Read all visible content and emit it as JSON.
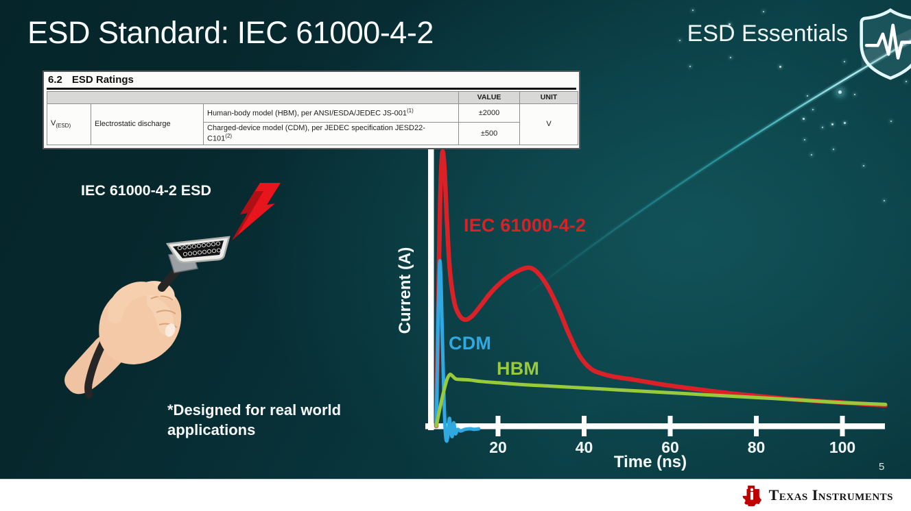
{
  "slide": {
    "title": "ESD Standard: IEC 61000-4-2",
    "brand": "ESD Essentials",
    "page_number": "5"
  },
  "ratings_table": {
    "section_number": "6.2",
    "section_title": "ESD Ratings",
    "value_header": "VALUE",
    "unit_header": "UNIT",
    "param_symbol": "V",
    "param_subscript": "(ESD)",
    "param_name": "Electrostatic discharge",
    "row1": {
      "desc": "Human-body model (HBM), per ANSI/ESDA/JEDEC JS-001",
      "sup": "(1)",
      "value": "±2000"
    },
    "row2": {
      "desc_line1": "Charged-device model (CDM), per JEDEC specification JESD22-",
      "desc_line2": "C101",
      "sup": "(2)",
      "value": "±500"
    },
    "unit": "V"
  },
  "illustration": {
    "label": "IEC 61000-4-2 ESD",
    "note": "*Designed for real world\napplications"
  },
  "footer": {
    "logo_text": "Texas Instruments"
  },
  "chart_data": {
    "type": "line",
    "title": "",
    "xlabel": "Time (ns)",
    "ylabel": "Current (A)",
    "x_ticks": [
      20,
      40,
      60,
      80,
      100
    ],
    "xlim": [
      0,
      110
    ],
    "ylim": [
      0,
      1
    ],
    "grid": false,
    "legend": "inline-labels",
    "axis_color": "#ffffff",
    "series": [
      {
        "name": "IEC 61000-4-2",
        "color": "#da2128",
        "points": [
          [
            5.65,
            0
          ],
          [
            5.9,
            0.22
          ],
          [
            6.2,
            0.52
          ],
          [
            6.55,
            0.82
          ],
          [
            6.9,
            0.97
          ],
          [
            7.2,
            1.0
          ],
          [
            7.6,
            0.93
          ],
          [
            8.1,
            0.76
          ],
          [
            8.8,
            0.57
          ],
          [
            9.8,
            0.455
          ],
          [
            11,
            0.405
          ],
          [
            12.4,
            0.388
          ],
          [
            14,
            0.402
          ],
          [
            16,
            0.44
          ],
          [
            18.5,
            0.49
          ],
          [
            21.5,
            0.535
          ],
          [
            24.5,
            0.565
          ],
          [
            27,
            0.578
          ],
          [
            29,
            0.563
          ],
          [
            31.5,
            0.51
          ],
          [
            34,
            0.43
          ],
          [
            36.5,
            0.335
          ],
          [
            39,
            0.255
          ],
          [
            41.5,
            0.21
          ],
          [
            44,
            0.192
          ],
          [
            47,
            0.18
          ],
          [
            52,
            0.168
          ],
          [
            58,
            0.152
          ],
          [
            64,
            0.139
          ],
          [
            70,
            0.127
          ],
          [
            76,
            0.116
          ],
          [
            82,
            0.107
          ],
          [
            88,
            0.0985
          ],
          [
            94,
            0.0915
          ],
          [
            100,
            0.086
          ],
          [
            105,
            0.0805
          ],
          [
            110,
            0.0755
          ]
        ]
      },
      {
        "name": "CDM",
        "color": "#2fa9e0",
        "points": [
          [
            5.65,
            0
          ],
          [
            5.85,
            0.18
          ],
          [
            6.1,
            0.42
          ],
          [
            6.35,
            0.565
          ],
          [
            6.55,
            0.6
          ],
          [
            6.8,
            0.5
          ],
          [
            7.1,
            0.3
          ],
          [
            7.45,
            0.1
          ],
          [
            7.75,
            -0.02
          ],
          [
            8.05,
            -0.055
          ],
          [
            8.4,
            -0.028
          ],
          [
            8.7,
            0.028
          ],
          [
            9.0,
            -0.012
          ],
          [
            9.35,
            -0.038
          ],
          [
            9.7,
            0.012
          ],
          [
            10.1,
            -0.028
          ],
          [
            10.6,
            -0.012
          ],
          [
            11.3,
            -0.018
          ],
          [
            12.3,
            -0.012
          ],
          [
            13.6,
            -0.01
          ],
          [
            14.5,
            -0.012
          ],
          [
            15.5,
            -0.01
          ]
        ]
      },
      {
        "name": "HBM",
        "color": "#99ca3c",
        "points": [
          [
            5.65,
            0
          ],
          [
            6.3,
            0.05
          ],
          [
            7.2,
            0.115
          ],
          [
            8.1,
            0.168
          ],
          [
            8.8,
            0.188
          ],
          [
            9.4,
            0.183
          ],
          [
            10.2,
            0.172
          ],
          [
            11.5,
            0.17
          ],
          [
            13.5,
            0.168
          ],
          [
            16,
            0.163
          ],
          [
            20,
            0.158
          ],
          [
            26,
            0.151
          ],
          [
            32,
            0.146
          ],
          [
            40,
            0.139
          ],
          [
            48,
            0.132
          ],
          [
            56,
            0.125
          ],
          [
            64,
            0.118
          ],
          [
            72,
            0.111
          ],
          [
            80,
            0.104
          ],
          [
            88,
            0.097
          ],
          [
            96,
            0.089
          ],
          [
            102,
            0.084
          ],
          [
            107,
            0.081
          ],
          [
            110,
            0.079
          ]
        ]
      }
    ]
  }
}
